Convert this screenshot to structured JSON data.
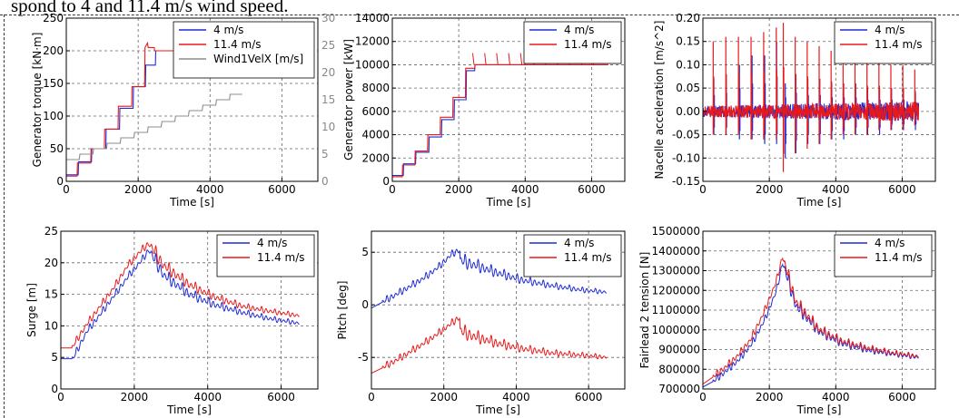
{
  "page": {
    "caption_fragment": "spond to 4 and 11.4 m/s wind speed."
  },
  "colors": {
    "blue": "#1f2bd6",
    "red": "#e8191b",
    "gray": "#8c8c8c",
    "grid": "#555555"
  },
  "chart_data": [
    {
      "type": "line",
      "ylabel": "Generator torque [kN·m]",
      "xlabel": "Time [s]",
      "xlim": [
        0,
        7000
      ],
      "ylim": [
        0,
        250
      ],
      "xticks": [
        0,
        2000,
        4000,
        6000
      ],
      "yticks": [
        0,
        50,
        100,
        150,
        200,
        250
      ],
      "y2label": "",
      "y2lim": [
        0,
        30
      ],
      "y2ticks": [
        0,
        5,
        10,
        15,
        20,
        25,
        30
      ],
      "legend": "top-right",
      "grid": true,
      "series": [
        {
          "name": "4 m/s",
          "color": "#1f2bd6",
          "x": [
            0,
            330,
            340,
            700,
            710,
            1100,
            1110,
            1480,
            1490,
            1860,
            1870,
            2200,
            2210,
            2480,
            2490,
            6500
          ],
          "y": [
            10,
            10,
            30,
            30,
            50,
            50,
            80,
            80,
            112,
            112,
            145,
            145,
            178,
            178,
            200,
            200
          ]
        },
        {
          "name": "11.4 m/s",
          "color": "#e8191b",
          "x": [
            0,
            300,
            310,
            680,
            690,
            1060,
            1070,
            1440,
            1450,
            1820,
            1830,
            2180,
            2190,
            2260,
            2280,
            2450,
            2460,
            6500
          ],
          "y": [
            8,
            8,
            28,
            28,
            50,
            50,
            80,
            80,
            115,
            115,
            145,
            145,
            205,
            212,
            205,
            205,
            200,
            200
          ]
        },
        {
          "name": "Wind1VelX [m/s]",
          "color": "#8c8c8c",
          "axis": "right",
          "x": [
            0,
            360,
            380,
            740,
            760,
            1120,
            1140,
            1500,
            1520,
            1880,
            1900,
            2260,
            2280,
            2640,
            2660,
            3020,
            3040,
            3400,
            3420,
            3780,
            3800,
            4160,
            4180,
            4540,
            4560,
            4900
          ],
          "y": [
            4,
            4,
            5,
            5,
            6,
            6,
            7,
            7,
            8,
            8,
            9,
            9,
            10,
            10,
            11,
            11,
            12,
            12,
            13,
            13,
            14,
            14,
            15,
            15,
            16,
            16
          ]
        }
      ]
    },
    {
      "type": "line",
      "ylabel": "Generator power [kW]",
      "xlabel": "Time [s]",
      "xlim": [
        0,
        7000
      ],
      "ylim": [
        0,
        14000
      ],
      "xticks": [
        0,
        2000,
        4000,
        6000
      ],
      "yticks": [
        0,
        2000,
        4000,
        6000,
        8000,
        10000,
        12000,
        14000
      ],
      "legend": "top-right",
      "grid": true,
      "series": [
        {
          "name": "4 m/s",
          "color": "#1f2bd6",
          "x": [
            0,
            330,
            340,
            700,
            710,
            1100,
            1110,
            1480,
            1490,
            1860,
            1870,
            2220,
            2230,
            2480,
            2490,
            6500
          ],
          "y": [
            500,
            500,
            1500,
            1500,
            2500,
            2500,
            3800,
            3800,
            5300,
            5300,
            7000,
            7000,
            9500,
            9500,
            10000,
            10000
          ]
        },
        {
          "name": "11.4 m/s",
          "color": "#e8191b",
          "x": [
            0,
            300,
            310,
            680,
            690,
            1060,
            1070,
            1440,
            1450,
            1820,
            1830,
            2200,
            2210,
            2480,
            2490,
            6500
          ],
          "y": [
            400,
            400,
            1400,
            1400,
            2600,
            2600,
            4000,
            4000,
            5500,
            5500,
            7200,
            7200,
            9700,
            9700,
            10000,
            10000
          ]
        }
      ],
      "spike_times": [
        2420,
        2780,
        3140,
        3500,
        3860,
        4220,
        4580,
        4940,
        5300,
        5660,
        6020
      ],
      "spike_peak": 11000
    },
    {
      "type": "line",
      "ylabel": "Nacelle acceleration [m/s^2]",
      "xlabel": "Time [s]",
      "xlim": [
        0,
        7000
      ],
      "ylim": [
        -0.15,
        0.2
      ],
      "xticks": [
        0,
        2000,
        4000,
        6000
      ],
      "yticks": [
        -0.15,
        -0.1,
        -0.05,
        0.0,
        0.05,
        0.1,
        0.15,
        0.2
      ],
      "legend": "top-right",
      "grid": true,
      "series": [
        {
          "name": "4 m/s",
          "color": "#1f2bd6",
          "spike_times": [
            330,
            700,
            1100,
            1480,
            1860,
            2220,
            2480,
            2800,
            3160,
            3520,
            3880,
            4240,
            4600,
            4960,
            5320,
            5680,
            6040,
            6400
          ],
          "spike_high": [
            0.07,
            0.08,
            0.1,
            0.12,
            0.12,
            0.15,
            0.06,
            0.08,
            0.07,
            0.07,
            0.06,
            0.06,
            0.06,
            0.05,
            0.05,
            0.05,
            0.05,
            0.04
          ],
          "spike_low": [
            -0.05,
            -0.05,
            -0.06,
            -0.06,
            -0.07,
            -0.07,
            -0.1,
            -0.09,
            -0.07,
            -0.07,
            -0.06,
            -0.06,
            -0.05,
            -0.05,
            -0.05,
            -0.04,
            -0.04,
            -0.04
          ]
        },
        {
          "name": "11.4 m/s",
          "color": "#e8191b",
          "spike_times": [
            310,
            690,
            1070,
            1450,
            1830,
            2210,
            2420,
            2780,
            3140,
            3500,
            3860,
            4220,
            4580,
            4940,
            5300,
            5660,
            6020,
            6380
          ],
          "spike_high": [
            0.15,
            0.16,
            0.16,
            0.16,
            0.17,
            0.18,
            0.19,
            0.16,
            0.15,
            0.14,
            0.13,
            0.12,
            0.12,
            0.11,
            0.11,
            0.1,
            0.1,
            0.09
          ],
          "spike_low": [
            -0.05,
            -0.05,
            -0.05,
            -0.06,
            -0.06,
            -0.06,
            -0.13,
            -0.09,
            -0.08,
            -0.07,
            -0.06,
            -0.05,
            -0.05,
            -0.05,
            -0.04,
            -0.04,
            -0.04,
            -0.03
          ]
        }
      ]
    },
    {
      "type": "line",
      "ylabel": "Surge [m]",
      "xlabel": "Time [s]",
      "xlim": [
        0,
        7000
      ],
      "ylim": [
        0,
        25
      ],
      "xticks": [
        0,
        2000,
        4000,
        6000
      ],
      "yticks": [
        0,
        5,
        10,
        15,
        20,
        25
      ],
      "legend": "top-right",
      "grid": true,
      "series": [
        {
          "name": "4 m/s",
          "color": "#1f2bd6",
          "x": [
            0,
            330,
            700,
            1100,
            1480,
            1860,
            2220,
            2400,
            2800,
            3500,
            4200,
            5000,
            5800,
            6500
          ],
          "y": [
            4.8,
            4.8,
            9,
            12,
            15,
            18,
            20.5,
            22,
            18,
            15,
            13.3,
            12,
            11,
            10.4
          ]
        },
        {
          "name": "11.4 m/s",
          "color": "#e8191b",
          "x": [
            0,
            300,
            680,
            1060,
            1440,
            1820,
            2200,
            2400,
            2800,
            3500,
            4200,
            5000,
            5800,
            6500
          ],
          "y": [
            6.5,
            6.5,
            10,
            13,
            16,
            19.5,
            22,
            23,
            19.5,
            16.5,
            14.5,
            13,
            12.2,
            11.6
          ]
        }
      ]
    },
    {
      "type": "line",
      "ylabel": "Pitch [deg]",
      "xlabel": "Time [s]",
      "xlim": [
        0,
        7000
      ],
      "ylim": [
        -8,
        7
      ],
      "xticks": [
        0,
        2000,
        4000,
        6000
      ],
      "yticks": [
        -5,
        0,
        5
      ],
      "legend": "top-right",
      "grid": true,
      "series": [
        {
          "name": "4 m/s",
          "color": "#1f2bd6",
          "x": [
            0,
            330,
            700,
            1100,
            1480,
            1860,
            2220,
            2440,
            2450,
            2800,
            3500,
            4200,
            5000,
            5800,
            6500
          ],
          "y": [
            -0.3,
            0.3,
            1,
            1.8,
            2.6,
            3.6,
            4.8,
            5.2,
            4.2,
            3.8,
            3.0,
            2.3,
            1.8,
            1.4,
            1.2
          ]
        },
        {
          "name": "11.4 m/s",
          "color": "#e8191b",
          "x": [
            0,
            300,
            680,
            1060,
            1440,
            1820,
            2200,
            2440,
            2450,
            2800,
            3500,
            4200,
            5000,
            5800,
            6500
          ],
          "y": [
            -6.5,
            -6,
            -5.3,
            -4.5,
            -3.7,
            -2.8,
            -1.8,
            -1.2,
            -2.5,
            -3.0,
            -3.7,
            -4.2,
            -4.6,
            -4.8,
            -5.0
          ]
        }
      ]
    },
    {
      "type": "line",
      "ylabel": "Fairlead 2 tension [N]",
      "xlabel": "Time [s]",
      "xlim": [
        0,
        7000
      ],
      "ylim": [
        700000,
        1500000
      ],
      "xticks": [
        0,
        2000,
        4000,
        6000
      ],
      "yticks": [
        700000,
        800000,
        900000,
        1000000,
        1100000,
        1200000,
        1300000,
        1400000,
        1500000
      ],
      "legend": "top-right",
      "grid": true,
      "series": [
        {
          "name": "4 m/s",
          "color": "#1f2bd6",
          "x": [
            0,
            330,
            700,
            1100,
            1480,
            1860,
            2220,
            2400,
            2800,
            3500,
            4200,
            5000,
            5800,
            6500
          ],
          "y": [
            710000,
            740000,
            790000,
            850000,
            930000,
            1050000,
            1200000,
            1340000,
            1120000,
            990000,
            930000,
            895000,
            875000,
            860000
          ]
        },
        {
          "name": "11.4 m/s",
          "color": "#e8191b",
          "x": [
            0,
            300,
            680,
            1060,
            1440,
            1820,
            2200,
            2400,
            2800,
            3500,
            4200,
            5000,
            5800,
            6500
          ],
          "y": [
            725000,
            760000,
            810000,
            870000,
            950000,
            1080000,
            1240000,
            1370000,
            1140000,
            1000000,
            940000,
            905000,
            880000,
            865000
          ]
        }
      ]
    }
  ]
}
